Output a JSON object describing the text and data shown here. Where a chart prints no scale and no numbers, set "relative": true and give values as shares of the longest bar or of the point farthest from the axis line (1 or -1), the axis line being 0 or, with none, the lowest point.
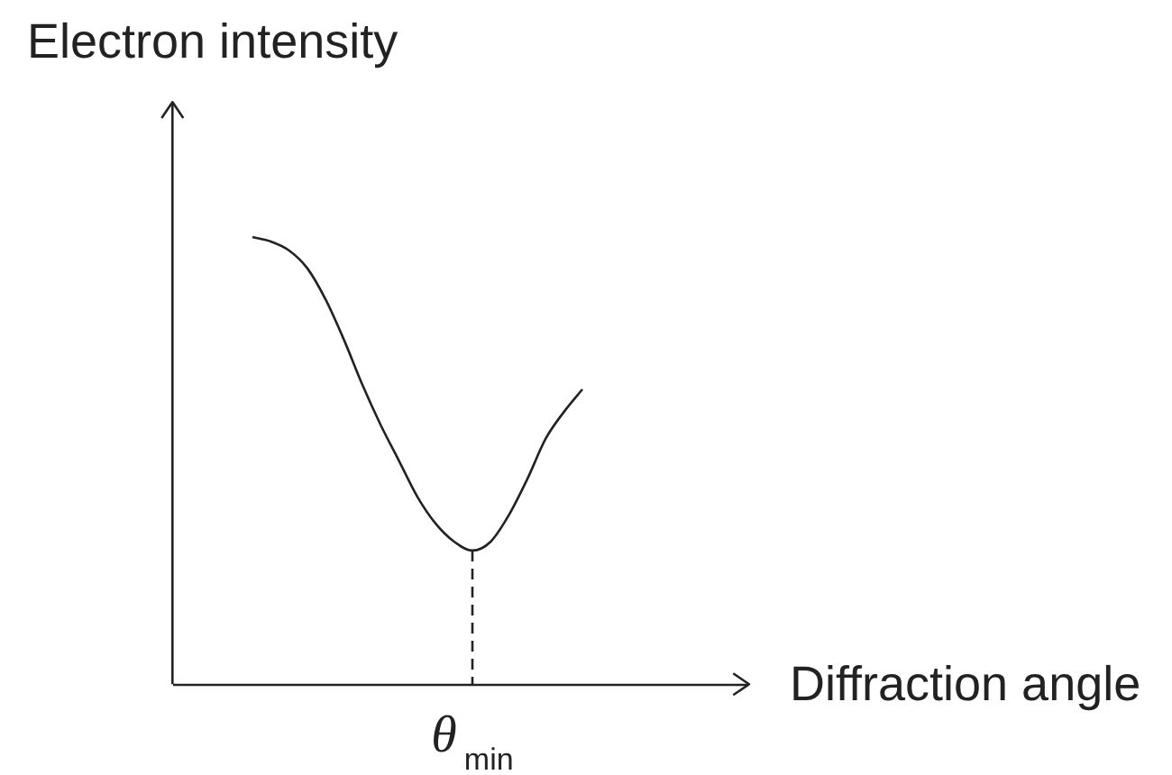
{
  "chart_data": {
    "type": "line",
    "relative": true,
    "xlabel": "Diffraction angle",
    "ylabel": "Electron intensity",
    "categories": [
      null,
      null,
      null,
      null,
      null,
      null,
      null,
      null,
      null,
      null,
      null,
      null,
      null,
      null,
      null,
      null,
      null,
      null,
      null
    ],
    "values": [
      1,
      0.99,
      0.97,
      0.93,
      0.86,
      0.77,
      0.67,
      0.58,
      0.5,
      0.42,
      0.36,
      0.32,
      0.3,
      0.32,
      0.38,
      0.46,
      0.55,
      0.61,
      0.66
    ],
    "color": "#222222",
    "ref_lines": [
      {
        "axis": "x",
        "value": "θ$_{min}$",
        "line_style": "dashed",
        "color": "#222222"
      }
    ]
  }
}
